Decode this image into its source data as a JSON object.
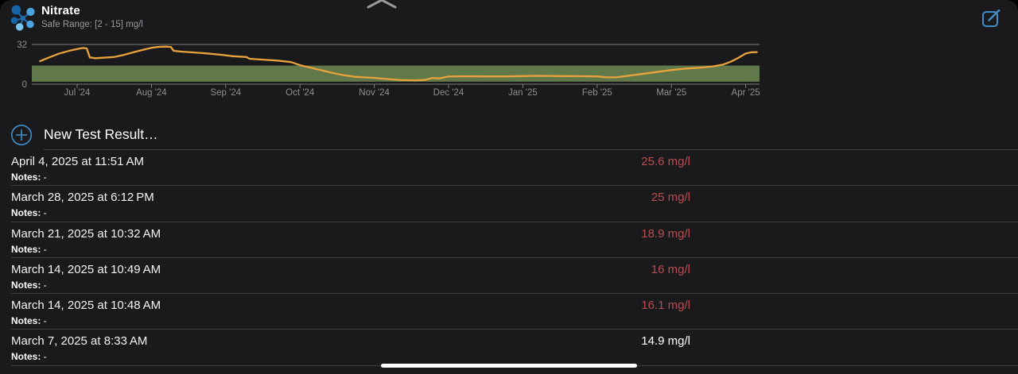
{
  "header": {
    "title": "Nitrate",
    "subtitle": "Safe Range: [2 - 15] mg/l"
  },
  "colors": {
    "panel_bg": "#1a1a1c",
    "accent_blue": "#3e8fc9",
    "line_orange": "#e8a33d",
    "band_green": "#61794a",
    "axis_gray": "#8e8e93",
    "alert_red": "#b84d50",
    "text_white": "#ffffff"
  },
  "chart_data": {
    "type": "line",
    "title": "Nitrate level history (mg/l)",
    "x_unit": "months offset from Jul 2024 tick",
    "x_tick_labels": [
      "Jul '24",
      "Aug '24",
      "Sep '24",
      "Oct '24",
      "Nov '24",
      "Dec '24",
      "Jan '25",
      "Feb '25",
      "Mar '25",
      "Apr '25"
    ],
    "y_ticks": [
      32,
      0
    ],
    "ylim": [
      0,
      32
    ],
    "safe_range": [
      2,
      15
    ],
    "grid": "top-and-bottom-only",
    "legend": false,
    "series": [
      {
        "name": "Nitrate (mg/l)",
        "color": "#e8a33d",
        "points": [
          [
            -0.5,
            18.5
          ],
          [
            -0.38,
            21.5
          ],
          [
            -0.25,
            24.5
          ],
          [
            -0.1,
            27
          ],
          [
            0,
            28.3
          ],
          [
            0.08,
            29.2
          ],
          [
            0.13,
            28.8
          ],
          [
            0.17,
            21.6
          ],
          [
            0.25,
            20.9
          ],
          [
            0.35,
            21.3
          ],
          [
            0.5,
            21.9
          ],
          [
            0.63,
            23.6
          ],
          [
            0.75,
            25.6
          ],
          [
            0.88,
            27.6
          ],
          [
            1,
            29.3
          ],
          [
            1.1,
            30.1
          ],
          [
            1.2,
            30.3
          ],
          [
            1.26,
            30
          ],
          [
            1.3,
            26.9
          ],
          [
            1.42,
            26.2
          ],
          [
            1.56,
            25.6
          ],
          [
            1.75,
            24.8
          ],
          [
            1.95,
            23.6
          ],
          [
            2.1,
            22.5
          ],
          [
            2.28,
            21.9
          ],
          [
            2.32,
            20.5
          ],
          [
            2.5,
            19.8
          ],
          [
            2.7,
            19
          ],
          [
            2.88,
            17.8
          ],
          [
            3,
            15.3
          ],
          [
            3.15,
            13.2
          ],
          [
            3.3,
            11
          ],
          [
            3.45,
            8.9
          ],
          [
            3.6,
            7.1
          ],
          [
            3.75,
            5.9
          ],
          [
            3.9,
            5.4
          ],
          [
            4,
            5.1
          ],
          [
            4.15,
            4.2
          ],
          [
            4.35,
            3.3
          ],
          [
            4.55,
            3.1
          ],
          [
            4.68,
            3.4
          ],
          [
            4.78,
            4.9
          ],
          [
            4.88,
            4.7
          ],
          [
            5,
            6.2
          ],
          [
            5.2,
            6.4
          ],
          [
            5.5,
            6.3
          ],
          [
            5.8,
            6.3
          ],
          [
            6,
            6.5
          ],
          [
            6.2,
            6.7
          ],
          [
            6.5,
            6.5
          ],
          [
            6.8,
            6.4
          ],
          [
            7,
            6.3
          ],
          [
            7.12,
            5.6
          ],
          [
            7.25,
            5.5
          ],
          [
            7.4,
            6.6
          ],
          [
            7.6,
            8.2
          ],
          [
            7.8,
            9.8
          ],
          [
            8,
            11.4
          ],
          [
            8.2,
            12.6
          ],
          [
            8.4,
            13.4
          ],
          [
            8.55,
            14.3
          ],
          [
            8.7,
            15.9
          ],
          [
            8.8,
            18.1
          ],
          [
            8.9,
            21.2
          ],
          [
            9,
            24.7
          ],
          [
            9.08,
            25.7
          ],
          [
            9.15,
            25.8
          ]
        ]
      }
    ]
  },
  "add_row": {
    "label": "New Test Result…"
  },
  "results": [
    {
      "date": "April 4, 2025 at 11:51 AM",
      "notes_label": "Notes:",
      "notes": "-",
      "value": "25.6 mg/l",
      "status": "out-of-range"
    },
    {
      "date": "March 28, 2025 at 6:12 PM",
      "notes_label": "Notes:",
      "notes": "-",
      "value": "25 mg/l",
      "status": "out-of-range"
    },
    {
      "date": "March 21, 2025 at 10:32 AM",
      "notes_label": "Notes:",
      "notes": "-",
      "value": "18.9 mg/l",
      "status": "out-of-range"
    },
    {
      "date": "March 14, 2025 at 10:49 AM",
      "notes_label": "Notes:",
      "notes": "-",
      "value": "16 mg/l",
      "status": "out-of-range"
    },
    {
      "date": "March 14, 2025 at 10:48 AM",
      "notes_label": "Notes:",
      "notes": "-",
      "value": "16.1 mg/l",
      "status": "out-of-range"
    },
    {
      "date": "March 7, 2025 at 8:33 AM",
      "notes_label": "Notes:",
      "notes": "-",
      "value": "14.9 mg/l",
      "status": "in-range"
    }
  ]
}
